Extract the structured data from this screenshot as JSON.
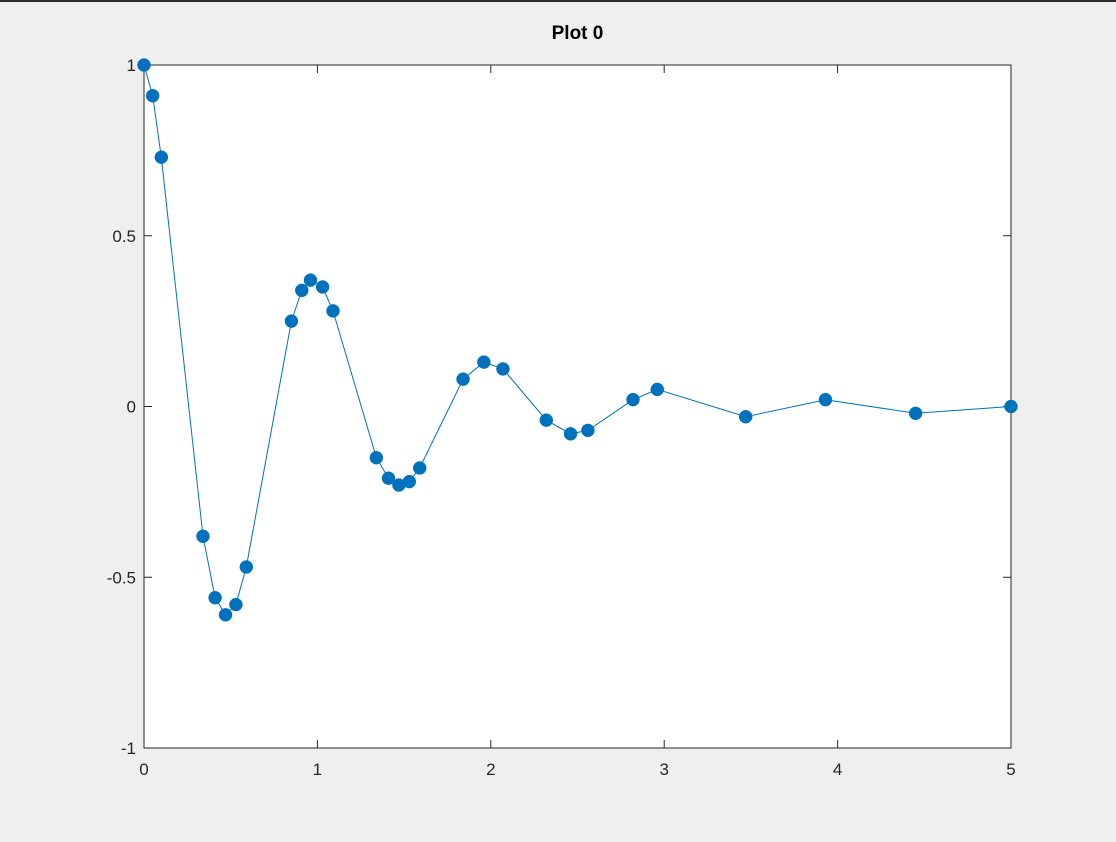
{
  "chart_data": {
    "type": "line",
    "title": "Plot 0",
    "xlabel": "",
    "ylabel": "",
    "xlim": [
      0,
      5
    ],
    "ylim": [
      -1,
      1
    ],
    "x_ticks": [
      0,
      1,
      2,
      3,
      4,
      5
    ],
    "x_tick_labels": [
      "0",
      "1",
      "2",
      "3",
      "4",
      "5"
    ],
    "y_ticks": [
      -1,
      -0.5,
      0,
      0.5,
      1
    ],
    "y_tick_labels": [
      "-1",
      "-0.5",
      "0",
      "0.5",
      "1"
    ],
    "grid": false,
    "marker": "circle",
    "colors": {
      "series": "#0072bd",
      "axes_bg": "#ffffff",
      "figure_bg": "#efefef",
      "axis": "#262626"
    },
    "series": [
      {
        "x": [
          0.0,
          0.05,
          0.1,
          0.34,
          0.41,
          0.47,
          0.53,
          0.59,
          0.85,
          0.91,
          0.96,
          1.03,
          1.09,
          1.34,
          1.41,
          1.47,
          1.53,
          1.59,
          1.84,
          1.96,
          2.07,
          2.32,
          2.46,
          2.56,
          2.82,
          2.96,
          3.47,
          3.93,
          4.45,
          5.0
        ],
        "y": [
          1.0,
          0.91,
          0.73,
          -0.38,
          -0.56,
          -0.61,
          -0.58,
          -0.47,
          0.25,
          0.34,
          0.37,
          0.35,
          0.28,
          -0.15,
          -0.21,
          -0.23,
          -0.22,
          -0.18,
          0.08,
          0.13,
          0.11,
          -0.04,
          -0.08,
          -0.07,
          0.02,
          0.05,
          -0.03,
          0.02,
          -0.02,
          0.0
        ]
      }
    ]
  }
}
